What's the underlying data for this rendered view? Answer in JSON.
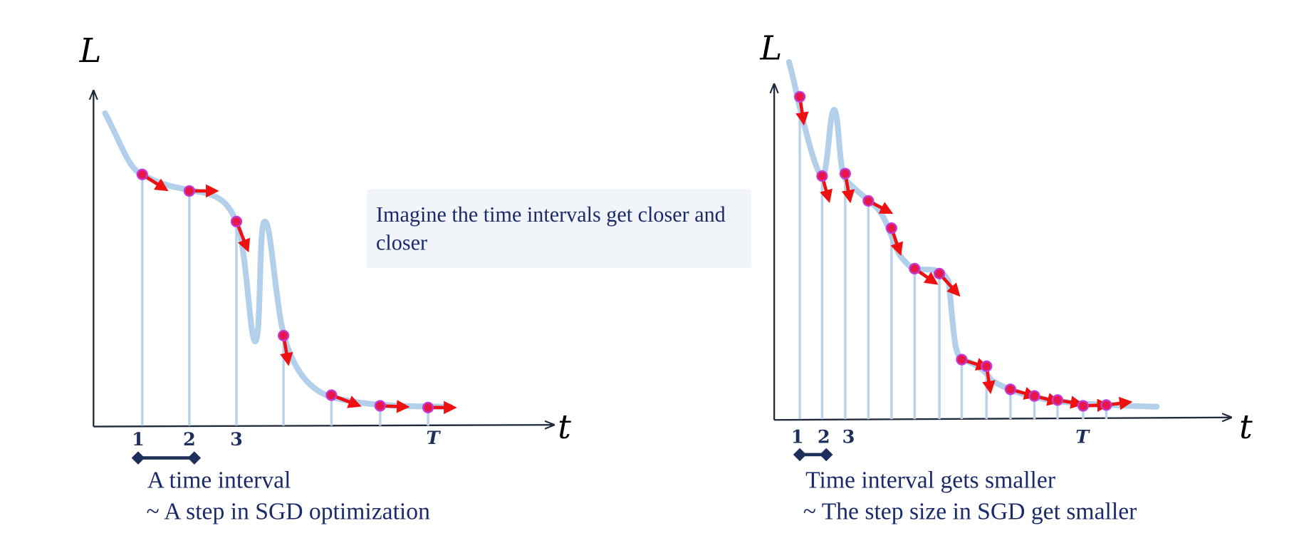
{
  "left_panel": {
    "y_axis_label": "L",
    "x_axis_label": "t",
    "tick_labels": [
      "1",
      "2",
      "3",
      "T"
    ],
    "caption": [
      "A time interval",
      "~ A step in SGD optimization"
    ]
  },
  "note": "Imagine the time intervals get closer and closer",
  "right_panel": {
    "y_axis_label": "L",
    "x_axis_label": "t",
    "tick_labels": [
      "1",
      "2",
      "3",
      "T"
    ],
    "caption": [
      "Time interval gets smaller",
      "~ The step size in SGD get smaller"
    ]
  }
}
